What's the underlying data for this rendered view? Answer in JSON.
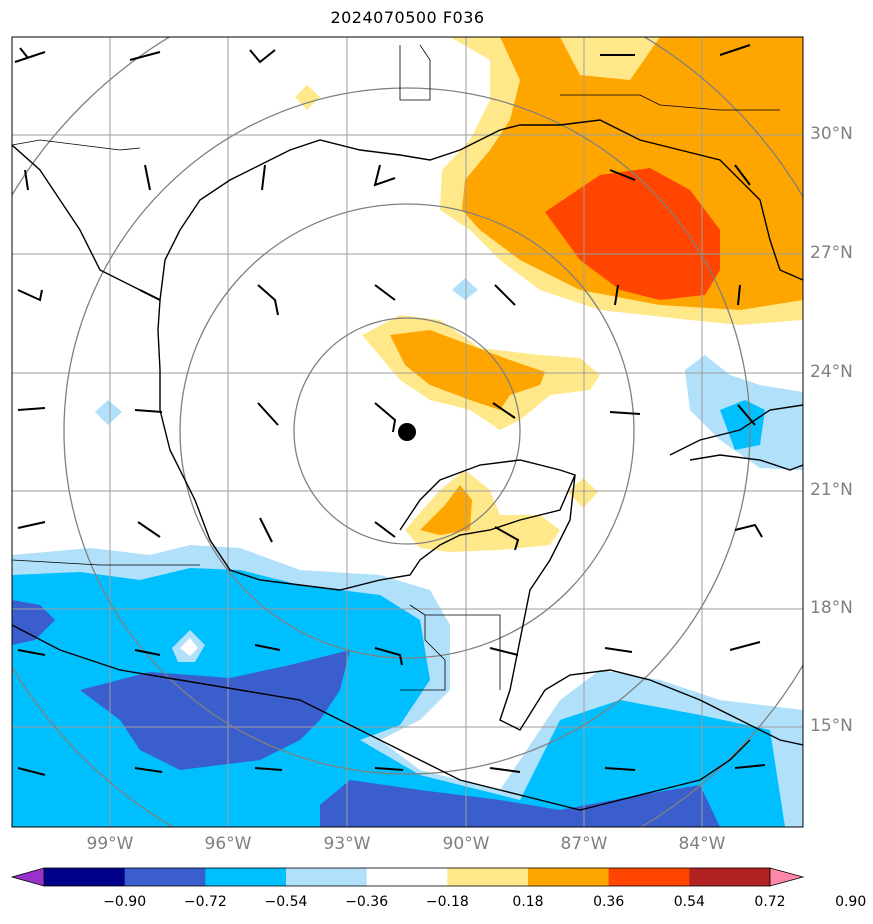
{
  "title": "2024070500 F036",
  "map": {
    "lat_labels": [
      "30°N",
      "27°N",
      "24°N",
      "21°N",
      "18°N",
      "15°N"
    ],
    "lon_labels": [
      "99°W",
      "96°W",
      "93°W",
      "90°W",
      "87°W",
      "84°W"
    ],
    "center_marker": "storm-center"
  },
  "colorbar": {
    "tick_labels": [
      "−0.90",
      "−0.72",
      "−0.54",
      "−0.36",
      "−0.18",
      "0.18",
      "0.36",
      "0.54",
      "0.72",
      "0.90"
    ],
    "colors": [
      "#9932cc",
      "#00008b",
      "#3a5fcd",
      "#00bfff",
      "#b0e0fa",
      "#ffffff",
      "#ffe88a",
      "#ffa500",
      "#ff4500",
      "#b22222",
      "#ff88aa"
    ]
  },
  "colors": {
    "coast": "#000000",
    "grid": "#9e9e9e",
    "range_rings": "#808080",
    "light_blue": "#b0e0fa",
    "sky_blue": "#00bfff",
    "royal_blue": "#3a5fcd",
    "yellow": "#ffe88a",
    "orange": "#ffa500",
    "red_orange": "#ff4500"
  }
}
